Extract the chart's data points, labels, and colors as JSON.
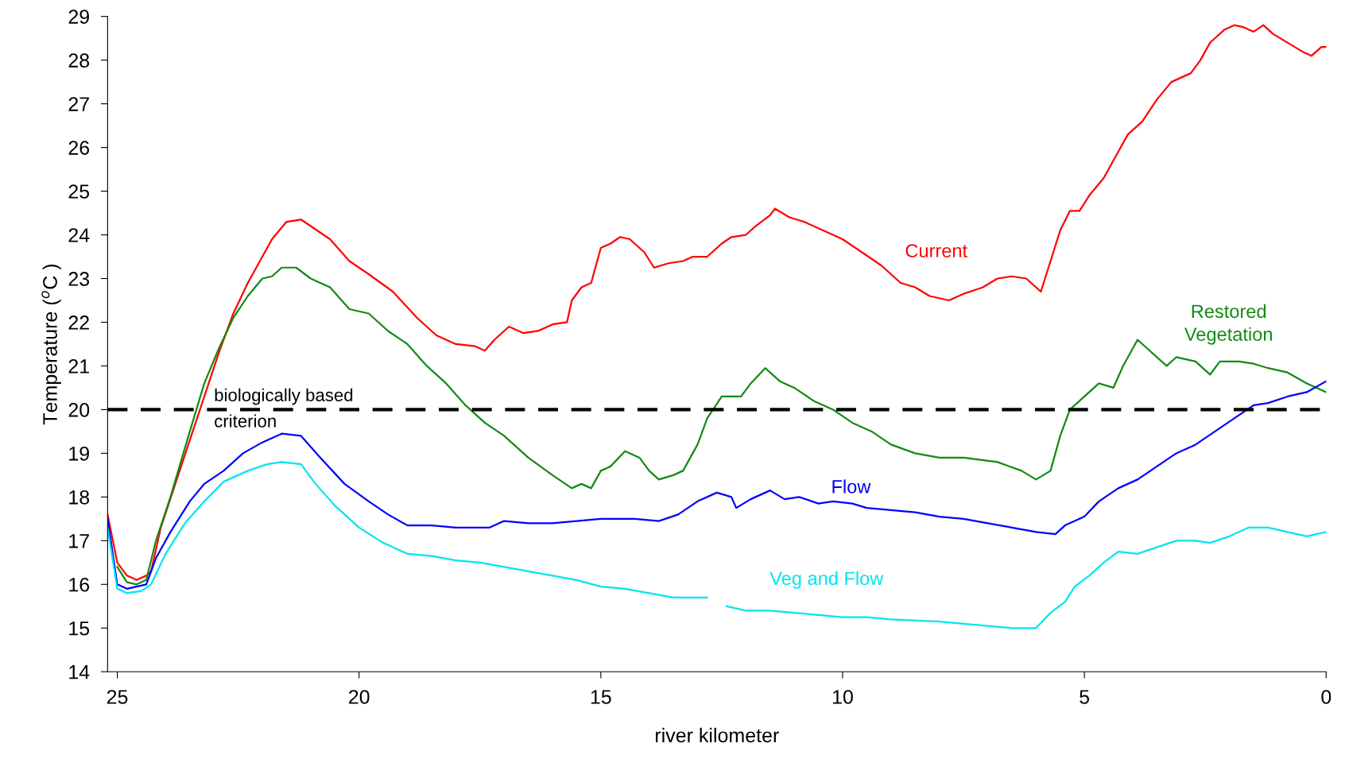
{
  "chart_data": {
    "type": "line",
    "xlabel": "river kilometer",
    "ylabel": "Temperature ($^{o}$C )",
    "xlim": [
      25.2,
      0
    ],
    "xticks": [
      25,
      20,
      15,
      10,
      5,
      0
    ],
    "ylim": [
      14,
      29
    ],
    "yticks": [
      14,
      15,
      16,
      17,
      18,
      19,
      20,
      21,
      22,
      23,
      24,
      25,
      26,
      27,
      28,
      29
    ],
    "grid": false,
    "legend": false,
    "line_style": "solid",
    "marker": "none",
    "ref_lines": [
      {
        "axis": "y",
        "value": 20,
        "label": "biologically based\ncriterion",
        "color": "#000000",
        "line_style": "dashed"
      }
    ],
    "series": [
      {
        "name": "Current",
        "color": "#ff0000",
        "x": [
          25.2,
          25.0,
          24.8,
          24.6,
          24.4,
          24.3,
          24.1,
          23.8,
          23.5,
          23.2,
          22.9,
          22.6,
          22.3,
          22.0,
          21.8,
          21.5,
          21.2,
          21.0,
          20.6,
          20.2,
          19.8,
          19.3,
          18.8,
          18.4,
          18.0,
          17.6,
          17.4,
          17.2,
          16.9,
          16.6,
          16.3,
          16.0,
          15.7,
          15.6,
          15.4,
          15.2,
          15.0,
          14.8,
          14.6,
          14.4,
          14.1,
          13.9,
          13.6,
          13.3,
          13.1,
          12.8,
          12.5,
          12.3,
          12.0,
          11.8,
          11.5,
          11.4,
          11.1,
          10.8,
          10.4,
          10.0,
          9.6,
          9.2,
          8.8,
          8.5,
          8.2,
          7.8,
          7.5,
          7.1,
          6.8,
          6.5,
          6.2,
          5.9,
          5.7,
          5.5,
          5.3,
          5.1,
          4.9,
          4.6,
          4.3,
          4.1,
          3.8,
          3.5,
          3.2,
          2.8,
          2.6,
          2.4,
          2.1,
          1.9,
          1.7,
          1.5,
          1.3,
          1.1,
          0.8,
          0.5,
          0.3,
          0.1,
          0
        ],
        "values": [
          17.6,
          16.5,
          16.2,
          16.1,
          16.2,
          16.3,
          17.3,
          18.3,
          19.3,
          20.3,
          21.3,
          22.2,
          22.9,
          23.5,
          23.9,
          24.3,
          24.35,
          24.2,
          23.9,
          23.4,
          23.1,
          22.7,
          22.1,
          21.7,
          21.5,
          21.45,
          21.35,
          21.6,
          21.9,
          21.75,
          21.8,
          21.95,
          22.0,
          22.5,
          22.8,
          22.9,
          23.7,
          23.8,
          23.95,
          23.9,
          23.6,
          23.25,
          23.35,
          23.4,
          23.5,
          23.5,
          23.8,
          23.95,
          24.0,
          24.2,
          24.45,
          24.6,
          24.4,
          24.3,
          24.1,
          23.9,
          23.6,
          23.3,
          22.9,
          22.8,
          22.6,
          22.5,
          22.65,
          22.8,
          23.0,
          23.05,
          23.0,
          22.7,
          23.4,
          24.1,
          24.55,
          24.55,
          24.9,
          25.3,
          25.9,
          26.3,
          26.6,
          27.1,
          27.5,
          27.7,
          28.0,
          28.4,
          28.7,
          28.8,
          28.75,
          28.65,
          28.8,
          28.6,
          28.4,
          28.2,
          28.1,
          28.3,
          28.3
        ]
      },
      {
        "name": "Restored\nVegetation",
        "color": "#138a13",
        "x": [
          25.0,
          24.8,
          24.6,
          24.4,
          24.2,
          23.9,
          23.5,
          23.2,
          22.9,
          22.6,
          22.3,
          22.0,
          21.8,
          21.6,
          21.3,
          21.0,
          20.6,
          20.2,
          19.8,
          19.4,
          19.0,
          18.6,
          18.2,
          17.8,
          17.4,
          17.0,
          16.5,
          16.0,
          15.6,
          15.4,
          15.2,
          15.0,
          14.8,
          14.5,
          14.2,
          14.0,
          13.8,
          13.5,
          13.3,
          13.0,
          12.8,
          12.5,
          12.1,
          11.9,
          11.6,
          11.3,
          11.0,
          10.6,
          10.2,
          9.8,
          9.4,
          9.0,
          8.5,
          8.0,
          7.5,
          6.8,
          6.3,
          6.0,
          5.7,
          5.5,
          5.3,
          5.0,
          4.7,
          4.4,
          4.2,
          3.9,
          3.7,
          3.3,
          3.1,
          2.7,
          2.4,
          2.2,
          1.8,
          1.5,
          1.2,
          0.8,
          0.4,
          0
        ],
        "values": [
          16.4,
          16.05,
          16.0,
          16.1,
          17.0,
          18.0,
          19.5,
          20.6,
          21.4,
          22.1,
          22.6,
          23.0,
          23.05,
          23.25,
          23.25,
          23.0,
          22.8,
          22.3,
          22.2,
          21.8,
          21.5,
          21.0,
          20.6,
          20.1,
          19.7,
          19.4,
          18.9,
          18.5,
          18.2,
          18.3,
          18.2,
          18.6,
          18.7,
          19.05,
          18.9,
          18.6,
          18.4,
          18.5,
          18.6,
          19.2,
          19.8,
          20.3,
          20.3,
          20.6,
          20.95,
          20.65,
          20.5,
          20.2,
          20.0,
          19.7,
          19.5,
          19.2,
          19.0,
          18.9,
          18.9,
          18.8,
          18.6,
          18.4,
          18.6,
          19.4,
          20.0,
          20.3,
          20.6,
          20.5,
          21.0,
          21.6,
          21.4,
          21.0,
          21.2,
          21.1,
          20.8,
          21.1,
          21.1,
          21.05,
          20.95,
          20.85,
          20.6,
          20.4
        ]
      },
      {
        "name": "Flow",
        "color": "#0000ff",
        "x": [
          25.2,
          25.0,
          24.8,
          24.4,
          24.2,
          23.9,
          23.5,
          23.2,
          22.8,
          22.4,
          22.0,
          21.6,
          21.2,
          20.8,
          20.3,
          19.8,
          19.4,
          19.0,
          18.5,
          18.0,
          17.3,
          17.0,
          16.5,
          16.0,
          15.5,
          15.0,
          14.3,
          13.8,
          13.4,
          13.0,
          12.6,
          12.3,
          12.2,
          11.9,
          11.5,
          11.2,
          10.9,
          10.5,
          10.2,
          9.8,
          9.5,
          9.0,
          8.5,
          8.0,
          7.5,
          7.0,
          6.5,
          6.0,
          5.6,
          5.4,
          5.0,
          4.7,
          4.3,
          3.9,
          3.5,
          3.1,
          2.7,
          2.3,
          1.9,
          1.5,
          1.2,
          0.8,
          0.4,
          0
        ],
        "values": [
          17.5,
          16.0,
          15.9,
          16.0,
          16.6,
          17.2,
          17.9,
          18.3,
          18.6,
          19.0,
          19.25,
          19.45,
          19.4,
          18.9,
          18.3,
          17.9,
          17.6,
          17.35,
          17.35,
          17.3,
          17.3,
          17.45,
          17.4,
          17.4,
          17.45,
          17.5,
          17.5,
          17.45,
          17.6,
          17.9,
          18.1,
          18.0,
          17.75,
          17.95,
          18.15,
          17.95,
          18.0,
          17.85,
          17.9,
          17.85,
          17.75,
          17.7,
          17.65,
          17.55,
          17.5,
          17.4,
          17.3,
          17.2,
          17.15,
          17.35,
          17.55,
          17.9,
          18.2,
          18.4,
          18.7,
          19.0,
          19.2,
          19.5,
          19.8,
          20.1,
          20.15,
          20.3,
          20.4,
          20.65
        ]
      },
      {
        "name": "Veg and Flow",
        "color": "#00e5ee",
        "x": [
          25.2,
          25.0,
          24.8,
          24.5,
          24.3,
          24.0,
          23.6,
          23.2,
          22.8,
          22.3,
          21.9,
          21.6,
          21.2,
          20.9,
          20.5,
          20.0,
          19.5,
          19.0,
          18.5,
          18.0,
          17.5,
          17.0,
          16.5,
          16.0,
          15.5,
          15.0,
          14.5,
          14.0,
          13.5,
          13.0,
          12.8,
          12.6,
          12.4,
          12.0,
          11.5,
          11.0,
          10.5,
          10.0,
          9.5,
          9.0,
          8.0,
          7.5,
          7.0,
          6.5,
          6.0,
          5.7,
          5.4,
          5.2,
          4.9,
          4.6,
          4.3,
          3.9,
          3.5,
          3.1,
          2.7,
          2.4,
          2.0,
          1.6,
          1.2,
          0.8,
          0.4,
          0
        ],
        "values": [
          17.3,
          15.9,
          15.8,
          15.85,
          16.0,
          16.7,
          17.4,
          17.9,
          18.35,
          18.6,
          18.75,
          18.8,
          18.75,
          18.3,
          17.8,
          17.3,
          16.95,
          16.7,
          16.65,
          16.55,
          16.5,
          16.4,
          16.3,
          16.2,
          16.1,
          15.95,
          15.9,
          15.8,
          15.7,
          15.7,
          15.7,
          null,
          15.5,
          15.4,
          15.4,
          15.35,
          15.3,
          15.25,
          15.25,
          15.2,
          15.15,
          15.1,
          15.05,
          15.0,
          15.0,
          15.35,
          15.6,
          15.95,
          16.2,
          16.5,
          16.75,
          16.7,
          16.85,
          17.0,
          17.0,
          16.95,
          17.1,
          17.3,
          17.3,
          17.2,
          17.1,
          17.2
        ]
      }
    ]
  }
}
